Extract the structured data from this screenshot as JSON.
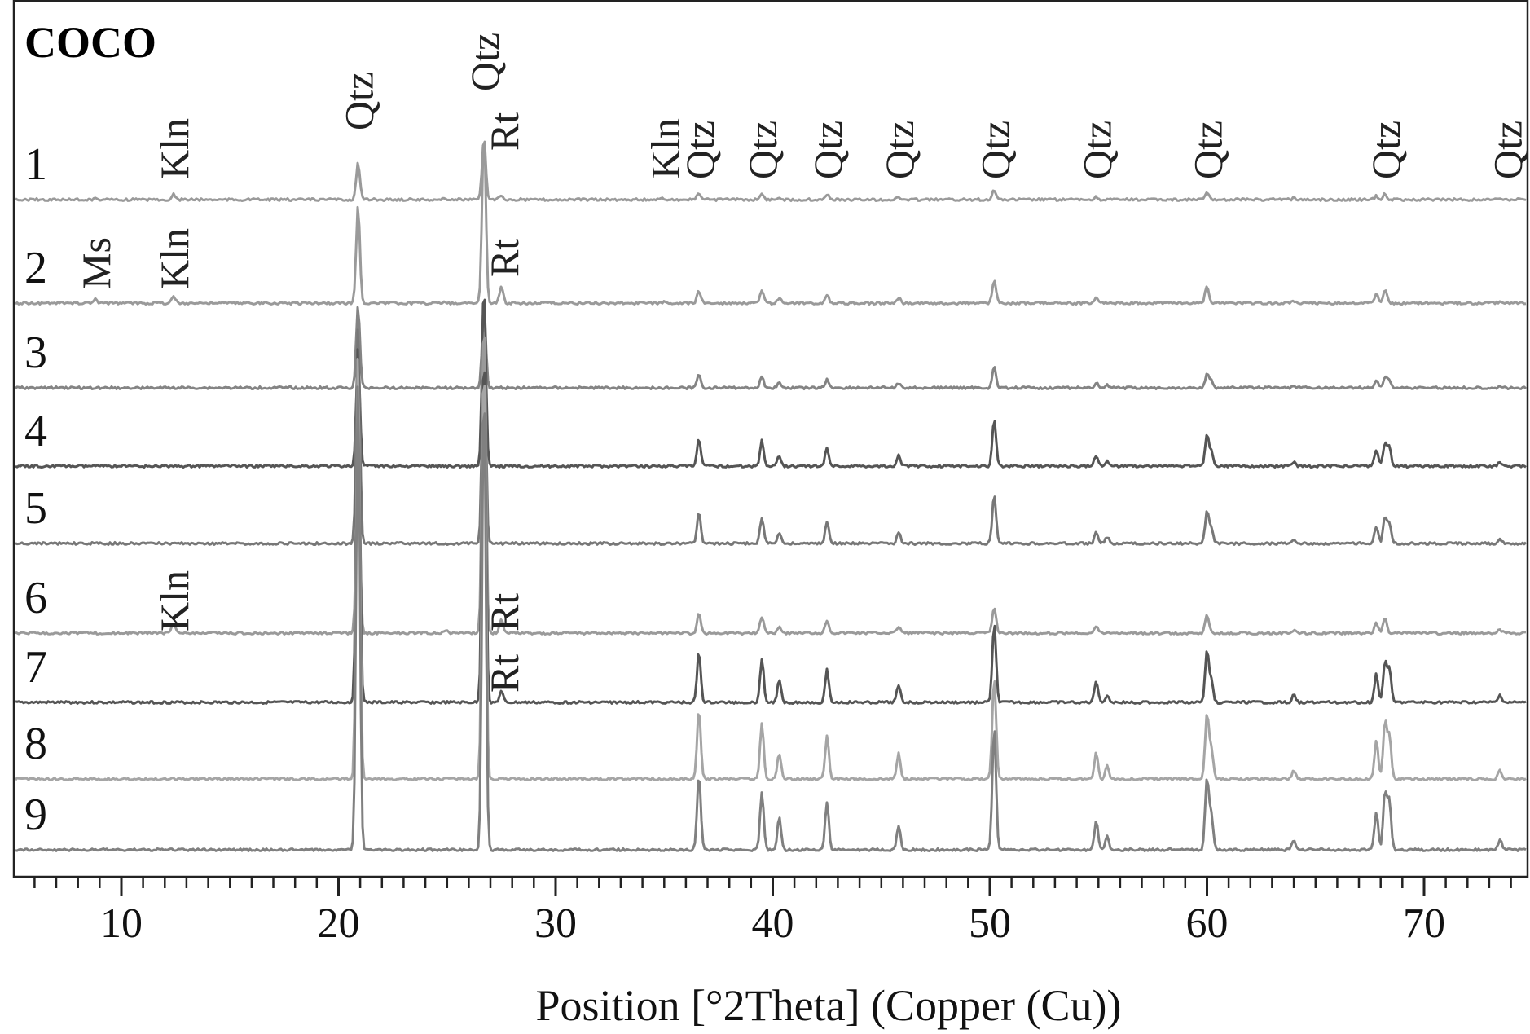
{
  "chart_data": {
    "type": "line",
    "title": "COCO",
    "xlabel": "Position [°2Theta] (Copper (Cu))",
    "ylabel": "",
    "xlim": [
      5,
      75
    ],
    "x_ticks": [
      10,
      20,
      30,
      40,
      50,
      60,
      70
    ],
    "grid": false,
    "series": [
      {
        "name": "1",
        "color": "#9a9a9a",
        "peaks": [
          [
            8.8,
            0.01
          ],
          [
            12.4,
            0.04
          ],
          [
            20.9,
            0.3
          ],
          [
            24.9,
            0.01
          ],
          [
            26.7,
            0.5
          ],
          [
            27.5,
            0.04
          ],
          [
            35.0,
            0.01
          ],
          [
            36.6,
            0.05
          ],
          [
            39.5,
            0.05
          ],
          [
            40.3,
            0.02
          ],
          [
            42.5,
            0.04
          ],
          [
            45.8,
            0.02
          ],
          [
            50.2,
            0.08
          ],
          [
            54.9,
            0.02
          ],
          [
            60.0,
            0.06
          ],
          [
            64.0,
            0.01
          ],
          [
            67.8,
            0.03
          ],
          [
            68.2,
            0.05
          ],
          [
            73.5,
            0.01
          ]
        ]
      },
      {
        "name": "2",
        "color": "#9a9a9a",
        "peaks": [
          [
            8.8,
            0.02
          ],
          [
            12.4,
            0.04
          ],
          [
            20.9,
            0.55
          ],
          [
            24.9,
            0.01
          ],
          [
            26.7,
            1.0
          ],
          [
            27.5,
            0.1
          ],
          [
            35.0,
            0.01
          ],
          [
            36.6,
            0.07
          ],
          [
            39.5,
            0.07
          ],
          [
            40.3,
            0.03
          ],
          [
            42.5,
            0.05
          ],
          [
            45.8,
            0.03
          ],
          [
            50.2,
            0.13
          ],
          [
            54.9,
            0.03
          ],
          [
            60.0,
            0.1
          ],
          [
            64.0,
            0.01
          ],
          [
            67.8,
            0.05
          ],
          [
            68.2,
            0.08
          ],
          [
            73.5,
            0.01
          ]
        ]
      },
      {
        "name": "3",
        "color": "#848484",
        "peaks": [
          [
            20.9,
            1.0
          ],
          [
            26.7,
            1.0
          ],
          [
            36.6,
            0.16
          ],
          [
            39.5,
            0.13
          ],
          [
            40.3,
            0.06
          ],
          [
            42.5,
            0.1
          ],
          [
            45.8,
            0.06
          ],
          [
            50.2,
            0.25
          ],
          [
            54.9,
            0.06
          ],
          [
            55.4,
            0.03
          ],
          [
            60.0,
            0.16
          ],
          [
            60.2,
            0.08
          ],
          [
            64.0,
            0.02
          ],
          [
            67.8,
            0.09
          ],
          [
            68.2,
            0.13
          ],
          [
            68.4,
            0.1
          ],
          [
            73.5,
            0.02
          ]
        ]
      },
      {
        "name": "4",
        "color": "#555555",
        "peaks": [
          [
            20.9,
            0.6
          ],
          [
            26.7,
            1.0
          ],
          [
            36.6,
            0.15
          ],
          [
            39.5,
            0.14
          ],
          [
            40.3,
            0.06
          ],
          [
            42.5,
            0.1
          ],
          [
            45.8,
            0.06
          ],
          [
            50.2,
            0.26
          ],
          [
            54.9,
            0.06
          ],
          [
            55.4,
            0.03
          ],
          [
            60.0,
            0.17
          ],
          [
            60.2,
            0.08
          ],
          [
            64.0,
            0.02
          ],
          [
            67.8,
            0.09
          ],
          [
            68.2,
            0.12
          ],
          [
            68.4,
            0.1
          ],
          [
            73.5,
            0.02
          ]
        ]
      },
      {
        "name": "5",
        "color": "#777777",
        "peaks": [
          [
            20.9,
            1.0
          ],
          [
            26.7,
            1.0
          ],
          [
            36.6,
            0.14
          ],
          [
            39.5,
            0.12
          ],
          [
            40.3,
            0.05
          ],
          [
            42.5,
            0.1
          ],
          [
            45.8,
            0.05
          ],
          [
            50.2,
            0.22
          ],
          [
            54.9,
            0.05
          ],
          [
            55.4,
            0.03
          ],
          [
            60.0,
            0.15
          ],
          [
            60.2,
            0.07
          ],
          [
            64.0,
            0.02
          ],
          [
            67.8,
            0.08
          ],
          [
            68.2,
            0.12
          ],
          [
            68.4,
            0.09
          ],
          [
            73.5,
            0.02
          ]
        ]
      },
      {
        "name": "6",
        "color": "#9a9a9a",
        "peaks": [
          [
            12.4,
            0.03
          ],
          [
            20.9,
            0.55
          ],
          [
            24.9,
            0.01
          ],
          [
            26.7,
            1.0
          ],
          [
            27.5,
            0.04
          ],
          [
            36.6,
            0.06
          ],
          [
            39.5,
            0.05
          ],
          [
            40.3,
            0.02
          ],
          [
            42.5,
            0.04
          ],
          [
            45.8,
            0.02
          ],
          [
            50.2,
            0.08
          ],
          [
            54.9,
            0.02
          ],
          [
            60.0,
            0.06
          ],
          [
            64.0,
            0.01
          ],
          [
            67.8,
            0.03
          ],
          [
            68.2,
            0.05
          ],
          [
            73.5,
            0.01
          ]
        ]
      },
      {
        "name": "7",
        "color": "#555555",
        "peaks": [
          [
            20.9,
            1.0
          ],
          [
            26.7,
            1.0
          ],
          [
            27.5,
            0.03
          ],
          [
            36.6,
            0.14
          ],
          [
            39.5,
            0.12
          ],
          [
            40.3,
            0.06
          ],
          [
            42.5,
            0.09
          ],
          [
            45.8,
            0.05
          ],
          [
            50.2,
            0.22
          ],
          [
            54.9,
            0.06
          ],
          [
            55.4,
            0.02
          ],
          [
            60.0,
            0.14
          ],
          [
            60.2,
            0.06
          ],
          [
            64.0,
            0.02
          ],
          [
            67.8,
            0.08
          ],
          [
            68.2,
            0.11
          ],
          [
            68.4,
            0.09
          ],
          [
            73.5,
            0.02
          ]
        ]
      },
      {
        "name": "8",
        "color": "#a5a5a5",
        "peaks": [
          [
            20.9,
            1.0
          ],
          [
            26.7,
            1.0
          ],
          [
            36.6,
            0.16
          ],
          [
            39.5,
            0.13
          ],
          [
            40.3,
            0.06
          ],
          [
            42.5,
            0.1
          ],
          [
            45.8,
            0.06
          ],
          [
            50.2,
            0.24
          ],
          [
            54.9,
            0.06
          ],
          [
            55.4,
            0.03
          ],
          [
            60.0,
            0.15
          ],
          [
            60.2,
            0.07
          ],
          [
            64.0,
            0.02
          ],
          [
            67.8,
            0.09
          ],
          [
            68.2,
            0.13
          ],
          [
            68.4,
            0.1
          ],
          [
            73.5,
            0.02
          ]
        ]
      },
      {
        "name": "9",
        "color": "#808080",
        "peaks": [
          [
            20.9,
            1.0
          ],
          [
            26.7,
            1.0
          ],
          [
            36.6,
            0.16
          ],
          [
            39.5,
            0.12
          ],
          [
            40.3,
            0.07
          ],
          [
            42.5,
            0.1
          ],
          [
            45.8,
            0.05
          ],
          [
            50.2,
            0.26
          ],
          [
            54.9,
            0.06
          ],
          [
            55.4,
            0.03
          ],
          [
            60.0,
            0.15
          ],
          [
            60.2,
            0.07
          ],
          [
            64.0,
            0.02
          ],
          [
            67.8,
            0.08
          ],
          [
            68.2,
            0.12
          ],
          [
            68.4,
            0.1
          ],
          [
            73.5,
            0.02
          ]
        ]
      }
    ],
    "annotations": [
      {
        "text": "Qtz",
        "x": 20.9,
        "series": "1"
      },
      {
        "text": "Qtz",
        "x": 26.7,
        "series": "1"
      },
      {
        "text": "Kln",
        "x": 12.4,
        "series": "1"
      },
      {
        "text": "Rt",
        "x": 27.6,
        "series": "1"
      },
      {
        "text": "Kln",
        "x": 35.0,
        "series": "1"
      },
      {
        "text": "Qtz",
        "x": 36.6,
        "series": "1"
      },
      {
        "text": "Qtz",
        "x": 39.5,
        "series": "1"
      },
      {
        "text": "Qtz",
        "x": 42.5,
        "series": "1"
      },
      {
        "text": "Qtz",
        "x": 45.8,
        "series": "1"
      },
      {
        "text": "Qtz",
        "x": 50.2,
        "series": "1"
      },
      {
        "text": "Qtz",
        "x": 54.9,
        "series": "1"
      },
      {
        "text": "Qtz",
        "x": 60.0,
        "series": "1"
      },
      {
        "text": "Qtz",
        "x": 68.2,
        "series": "1"
      },
      {
        "text": "Qtz",
        "x": 73.8,
        "series": "1"
      },
      {
        "text": "Ms",
        "x": 8.8,
        "series": "2"
      },
      {
        "text": "Kln",
        "x": 12.4,
        "series": "2"
      },
      {
        "text": "Rt",
        "x": 27.6,
        "series": "2"
      },
      {
        "text": "Kln",
        "x": 12.4,
        "series": "6"
      },
      {
        "text": "Rt",
        "x": 27.6,
        "series": "6"
      },
      {
        "text": "Rt",
        "x": 27.6,
        "series": "7"
      }
    ]
  }
}
